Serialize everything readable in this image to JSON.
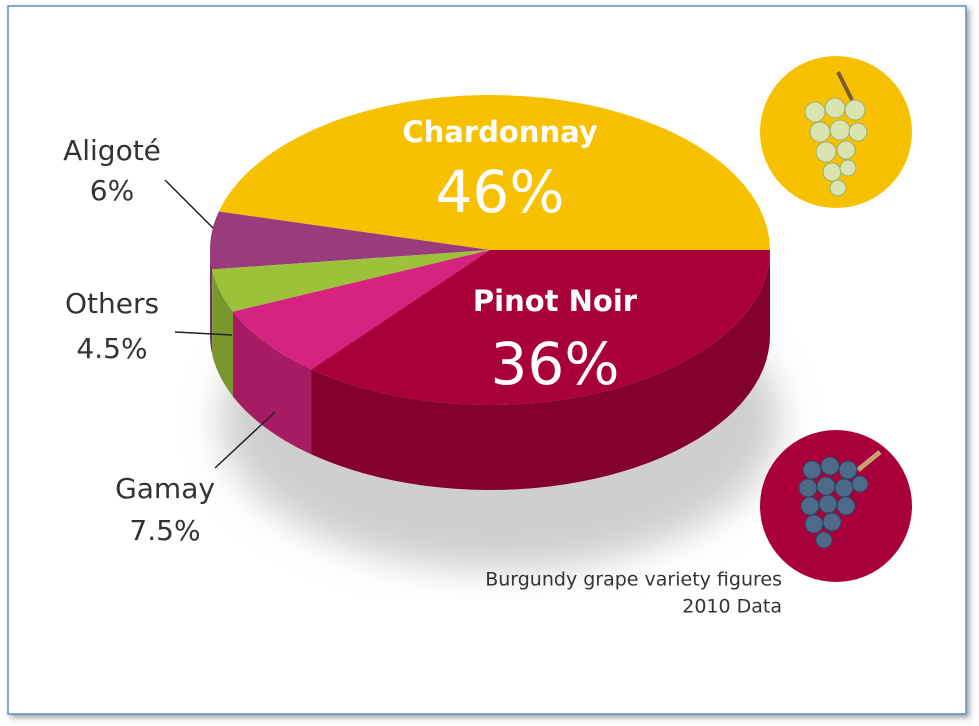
{
  "chart_data": {
    "type": "pie3d",
    "categories": [
      "Chardonnay",
      "Aligoté",
      "Others",
      "Gamay",
      "Pinot Noir"
    ],
    "values": [
      46,
      6,
      4.5,
      7.5,
      36
    ],
    "value_labels": [
      "46%",
      "6%",
      "4.5%",
      "7.5%",
      "36%"
    ],
    "colors": [
      "#f8c100",
      "#9a3b7d",
      "#9cc23a",
      "#d6237f",
      "#a9003b"
    ],
    "caption": [
      "Burgundy grape variety figures",
      "2010 Data"
    ]
  }
}
